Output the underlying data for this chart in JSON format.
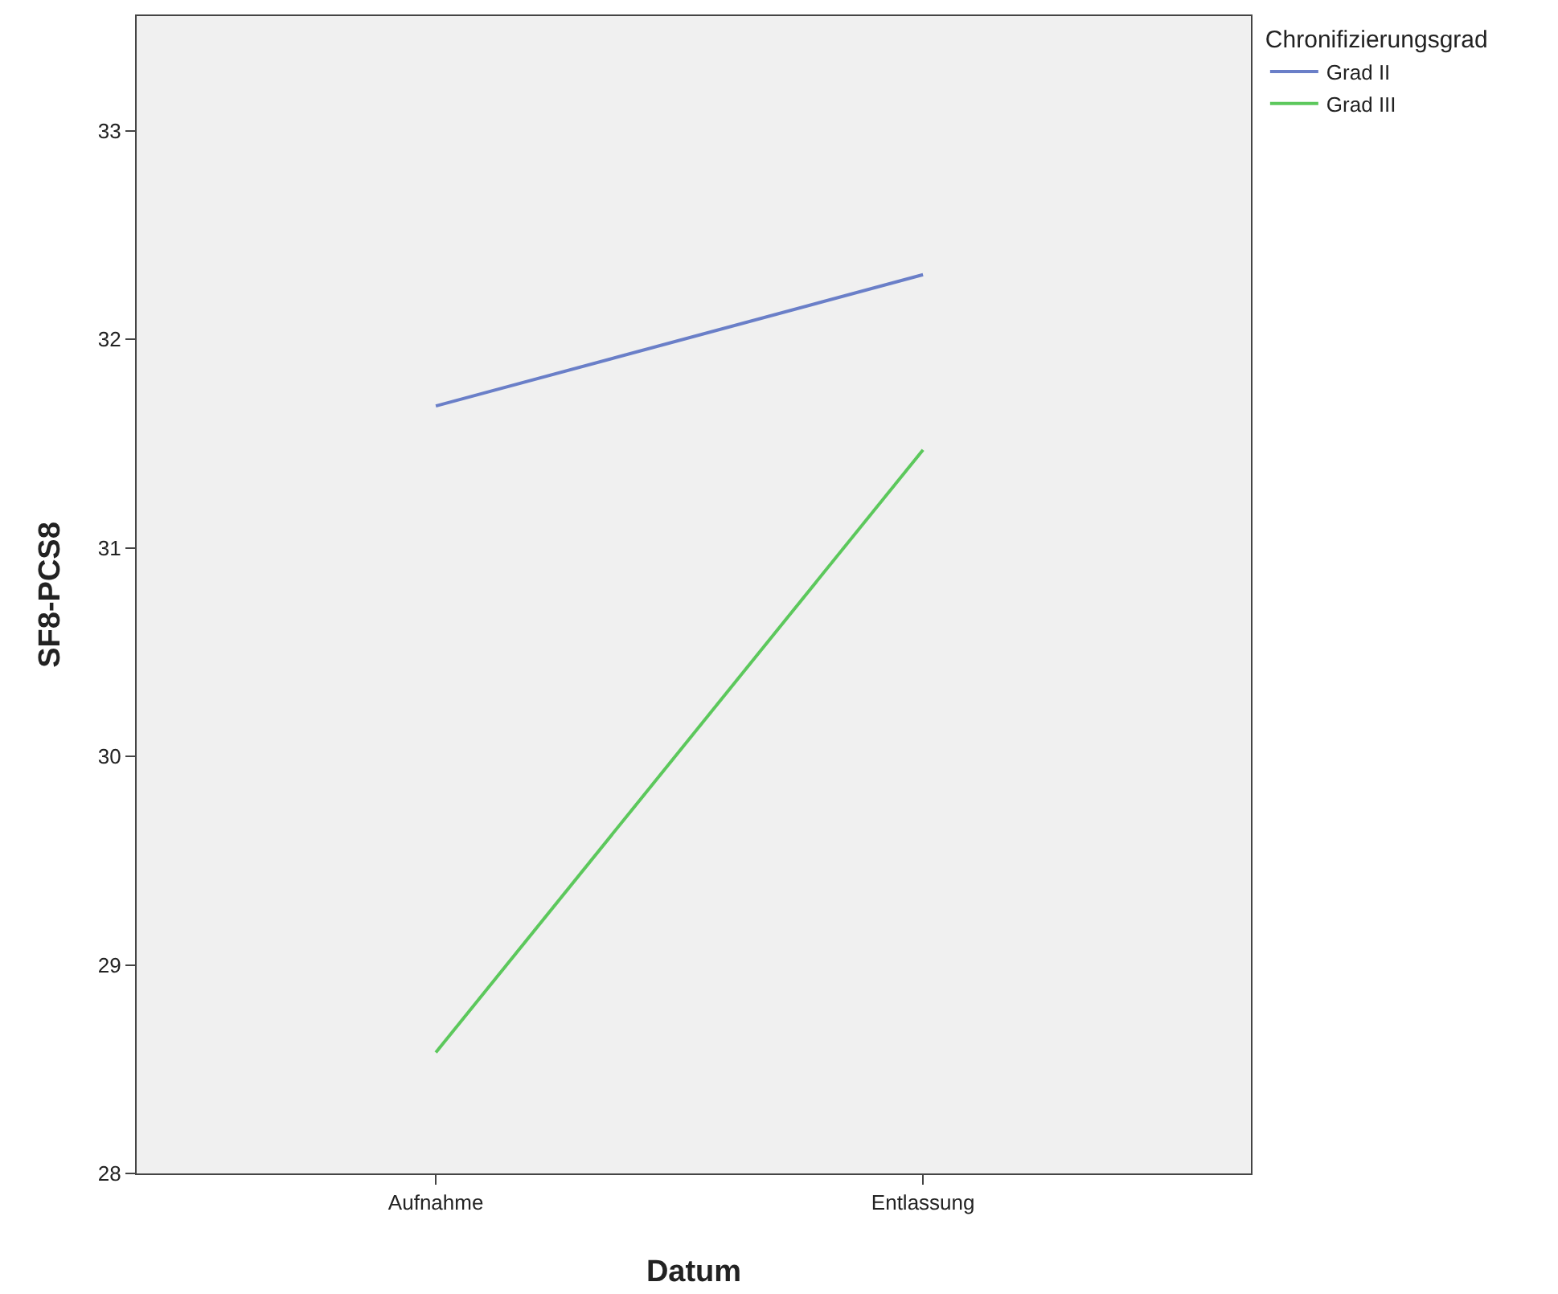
{
  "chart_data": {
    "type": "line",
    "xlabel": "Datum",
    "ylabel": "SF8-PCS8",
    "legend_title": "Chronifizierungsgrad",
    "categories": [
      "Aufnahme",
      "Entlassung"
    ],
    "series": [
      {
        "name": "Grad II",
        "color": "#6a7fc8",
        "values": [
          31.68,
          32.31
        ]
      },
      {
        "name": "Grad III",
        "color": "#5cc85c",
        "values": [
          28.58,
          31.47
        ]
      }
    ],
    "ylim": [
      28,
      33.55
    ],
    "yticks": [
      28,
      29,
      30,
      31,
      32,
      33
    ],
    "grid": false,
    "legend": "top right",
    "marker": "none",
    "line_style": "solid"
  }
}
